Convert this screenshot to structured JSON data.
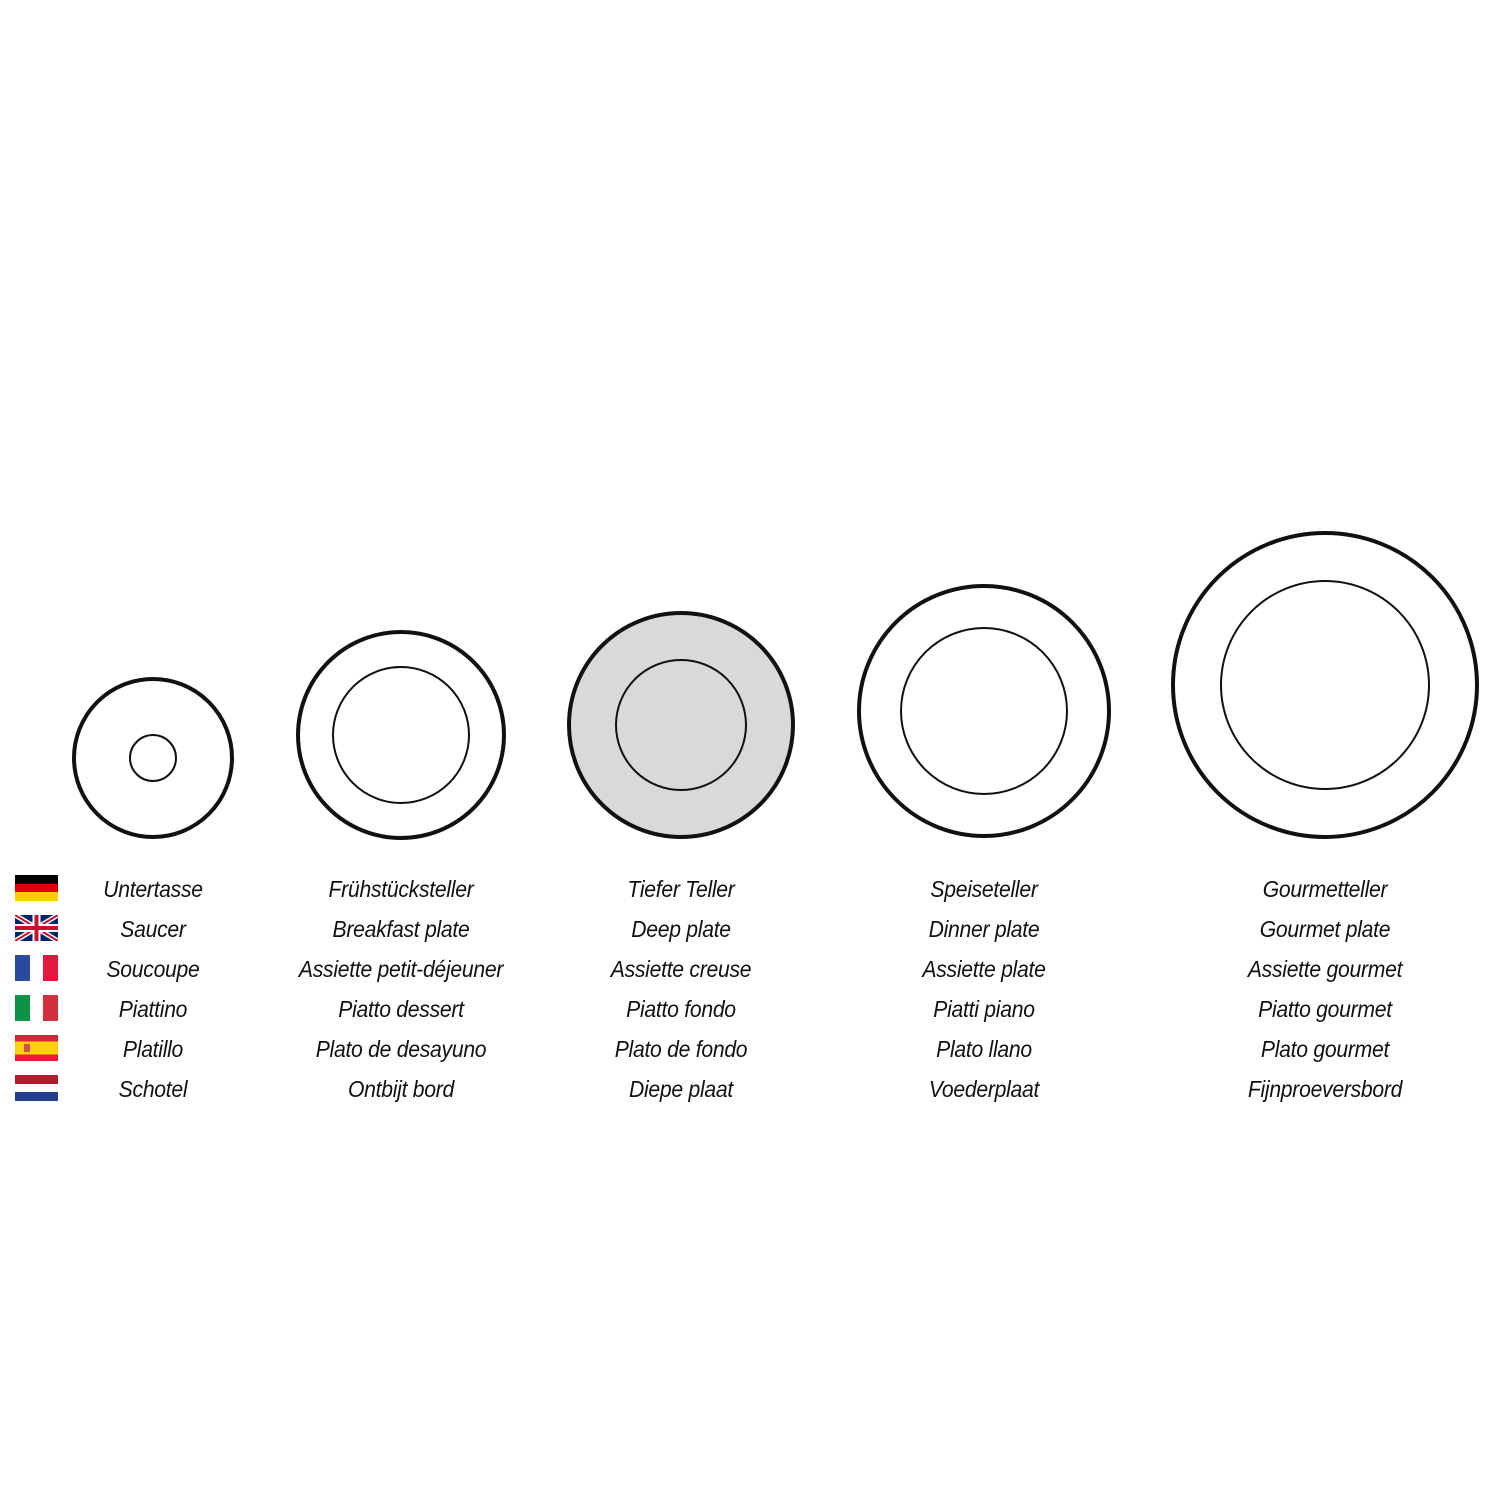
{
  "plates": [
    {
      "id": "saucer",
      "fill": "#ffffff"
    },
    {
      "id": "breakfast",
      "fill": "#ffffff"
    },
    {
      "id": "deep",
      "fill": "#d9d9d9"
    },
    {
      "id": "dinner",
      "fill": "#ffffff"
    },
    {
      "id": "gourmet",
      "fill": "#ffffff"
    }
  ],
  "languages": [
    {
      "flag": "germany-flag",
      "labels": [
        "Untertasse",
        "Frühstücksteller",
        "Tiefer Teller",
        "Speiseteller",
        "Gourmetteller"
      ]
    },
    {
      "flag": "uk-flag",
      "labels": [
        "Saucer",
        "Breakfast plate",
        "Deep plate",
        "Dinner plate",
        "Gourmet plate"
      ]
    },
    {
      "flag": "france-flag",
      "labels": [
        "Soucoupe",
        "Assiette petit-déjeuner",
        "Assiette creuse",
        "Assiette plate",
        "Assiette gourmet"
      ]
    },
    {
      "flag": "italy-flag",
      "labels": [
        "Piattino",
        "Piatto dessert",
        "Piatto fondo",
        "Piatti piano",
        "Piatto gourmet"
      ]
    },
    {
      "flag": "spain-flag",
      "labels": [
        "Platillo",
        "Plato de desayuno",
        "Plato de fondo",
        "Plato llano",
        "Plato gourmet"
      ]
    },
    {
      "flag": "netherlands-flag",
      "labels": [
        "Schotel",
        "Ontbijt bord",
        "Diepe plaat",
        "Voederplaat",
        "Fijnproeversbord"
      ]
    }
  ]
}
